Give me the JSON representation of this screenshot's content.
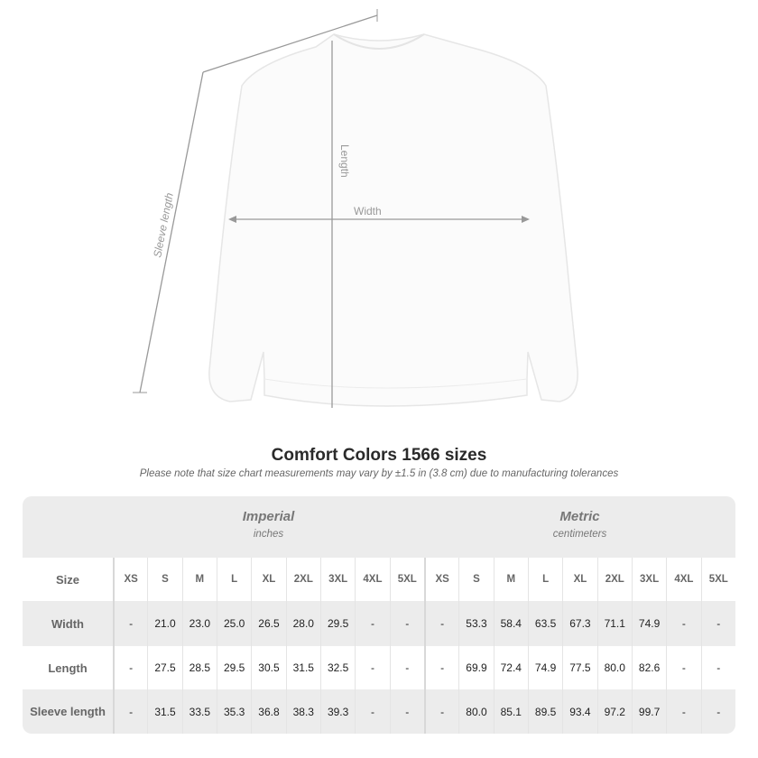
{
  "diagram": {
    "length_label": "Length",
    "width_label": "Width",
    "sleeve_label": "Sleeve length"
  },
  "title": "Comfort Colors 1566 sizes",
  "note": "Please note that size chart measurements may vary by ±1.5 in (3.8 cm) due to manufacturing tolerances",
  "imperial": {
    "name": "Imperial",
    "unit": "inches"
  },
  "metric": {
    "name": "Metric",
    "unit": "centimeters"
  },
  "size_header": "Size",
  "sizes": [
    "XS",
    "S",
    "M",
    "L",
    "XL",
    "2XL",
    "3XL",
    "4XL",
    "5XL"
  ],
  "rows": [
    {
      "label": "Width",
      "imperial": [
        "-",
        "21.0",
        "23.0",
        "25.0",
        "26.5",
        "28.0",
        "29.5",
        "-",
        "-"
      ],
      "metric": [
        "-",
        "53.3",
        "58.4",
        "63.5",
        "67.3",
        "71.1",
        "74.9",
        "-",
        "-"
      ]
    },
    {
      "label": "Length",
      "imperial": [
        "-",
        "27.5",
        "28.5",
        "29.5",
        "30.5",
        "31.5",
        "32.5",
        "-",
        "-"
      ],
      "metric": [
        "-",
        "69.9",
        "72.4",
        "74.9",
        "77.5",
        "80.0",
        "82.6",
        "-",
        "-"
      ]
    },
    {
      "label": "Sleeve length",
      "imperial": [
        "-",
        "31.5",
        "33.5",
        "35.3",
        "36.8",
        "38.3",
        "39.3",
        "-",
        "-"
      ],
      "metric": [
        "-",
        "80.0",
        "85.1",
        "89.5",
        "93.4",
        "97.2",
        "99.7",
        "-",
        "-"
      ]
    }
  ]
}
